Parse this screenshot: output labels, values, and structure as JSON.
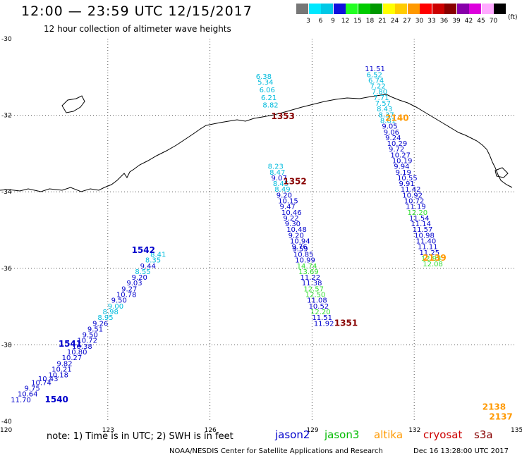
{
  "title": "12:00 — 23:59 UTC 12/15/2017",
  "subtitle": "12 hour collection of altimeter wave heights",
  "legend": {
    "unit": "(ft)",
    "bins": [
      {
        "label": "3",
        "color": "#777777"
      },
      {
        "label": "6",
        "color": "#00e8ff"
      },
      {
        "label": "9",
        "color": "#00c8e6"
      },
      {
        "label": "12",
        "color": "#1010dd"
      },
      {
        "label": "15",
        "color": "#22ff22"
      },
      {
        "label": "18",
        "color": "#00cc00"
      },
      {
        "label": "21",
        "color": "#009900"
      },
      {
        "label": "24",
        "color": "#ffff00"
      },
      {
        "label": "27",
        "color": "#ffcc00"
      },
      {
        "label": "30",
        "color": "#ff9900"
      },
      {
        "label": "33",
        "color": "#ff0000"
      },
      {
        "label": "36",
        "color": "#cc0000"
      },
      {
        "label": "39",
        "color": "#880000"
      },
      {
        "label": "42",
        "color": "#8800aa"
      },
      {
        "label": "45",
        "color": "#dd00dd"
      },
      {
        "label": "70",
        "color": "#ffaaff"
      },
      {
        "label": "",
        "color": "#000000"
      }
    ]
  },
  "axes": {
    "lon_ticks": [
      {
        "v": 120,
        "label": "120"
      },
      {
        "v": 123,
        "label": "123"
      },
      {
        "v": 126,
        "label": "126"
      },
      {
        "v": 129,
        "label": "129"
      },
      {
        "v": 132,
        "label": "132"
      },
      {
        "v": 135,
        "label": "135"
      }
    ],
    "lat_ticks": [
      {
        "v": -30,
        "label": "-30"
      },
      {
        "v": -32,
        "label": "-32"
      },
      {
        "v": -34,
        "label": "-34"
      },
      {
        "v": -36,
        "label": "-36"
      },
      {
        "v": -38,
        "label": "-38"
      },
      {
        "v": -40,
        "label": "-40"
      }
    ]
  },
  "colors": {
    "jason2": "#0000cc",
    "jason3": "#00bb00",
    "altika": "#ff9900",
    "cryosat": "#cc0000",
    "s3a": "#880000",
    "cyan": "#00bbdd",
    "green": "#33dd33"
  },
  "passes": [
    {
      "id": "1540",
      "label": "1540",
      "color": "#0000cc",
      "label_lon": 121.15,
      "label_lat": -39.5
    },
    {
      "id": "1541",
      "label": "1541",
      "color": "#0000cc",
      "label_lon": 121.55,
      "label_lat": -38.05
    },
    {
      "id": "1542",
      "label": "1542",
      "color": "#0000cc",
      "label_lon": 123.7,
      "label_lat": -35.6
    },
    {
      "id": "1351",
      "label": "1351",
      "color": "#880000",
      "label_lon": 129.65,
      "label_lat": -37.5
    },
    {
      "id": "1352",
      "label": "1352",
      "color": "#880000",
      "label_lon": 128.15,
      "label_lat": -33.8
    },
    {
      "id": "1353",
      "label": "1353",
      "color": "#880000",
      "label_lon": 127.8,
      "label_lat": -32.1
    },
    {
      "id": "2137",
      "label": "2137",
      "color": "#ff9900",
      "label_lon": 134.2,
      "label_lat": -39.95
    },
    {
      "id": "2138",
      "label": "2138",
      "color": "#ff9900",
      "label_lon": 134.0,
      "label_lat": -39.7
    },
    {
      "id": "2139",
      "label": "2139",
      "color": "#ff9900",
      "label_lon": 132.25,
      "label_lat": -35.8
    },
    {
      "id": "2140",
      "label": "2140",
      "color": "#ff9900",
      "label_lon": 131.15,
      "label_lat": -32.15
    }
  ],
  "wave_heights": [
    {
      "v": "11.70",
      "lon": 120.15,
      "lat": -39.5,
      "c": "#0000cc"
    },
    {
      "v": "10.64",
      "lon": 120.35,
      "lat": -39.35,
      "c": "#0000cc"
    },
    {
      "v": "9.75",
      "lon": 120.55,
      "lat": -39.2,
      "c": "#0000cc"
    },
    {
      "v": "10.74",
      "lon": 120.75,
      "lat": -39.05,
      "c": "#0000cc"
    },
    {
      "v": "10.43",
      "lon": 120.95,
      "lat": -38.95,
      "c": "#0000cc"
    },
    {
      "v": "10.18",
      "lon": 121.25,
      "lat": -38.85,
      "c": "#0000cc"
    },
    {
      "v": "10.21",
      "lon": 121.35,
      "lat": -38.7,
      "c": "#0000cc"
    },
    {
      "v": "9.82",
      "lon": 121.5,
      "lat": -38.55,
      "c": "#0000cc"
    },
    {
      "v": "10.27",
      "lon": 121.65,
      "lat": -38.4,
      "c": "#0000cc"
    },
    {
      "v": "10.80",
      "lon": 121.8,
      "lat": -38.25,
      "c": "#0000cc"
    },
    {
      "v": "10.38",
      "lon": 121.95,
      "lat": -38.1,
      "c": "#0000cc"
    },
    {
      "v": "10.72",
      "lon": 122.1,
      "lat": -37.95,
      "c": "#0000cc"
    },
    {
      "v": "9.50",
      "lon": 122.25,
      "lat": -37.8,
      "c": "#0000cc"
    },
    {
      "v": "9.51",
      "lon": 122.4,
      "lat": -37.65,
      "c": "#0000cc"
    },
    {
      "v": "9.26",
      "lon": 122.55,
      "lat": -37.5,
      "c": "#0000cc"
    },
    {
      "v": "8.95",
      "lon": 122.7,
      "lat": -37.35,
      "c": "#00bbdd"
    },
    {
      "v": "8.98",
      "lon": 122.85,
      "lat": -37.2,
      "c": "#00bbdd"
    },
    {
      "v": "9.00",
      "lon": 123.0,
      "lat": -37.05,
      "c": "#00bbdd"
    },
    {
      "v": "9.50",
      "lon": 123.1,
      "lat": -36.9,
      "c": "#0000cc"
    },
    {
      "v": "10.78",
      "lon": 123.25,
      "lat": -36.75,
      "c": "#0000cc"
    },
    {
      "v": "9.27",
      "lon": 123.4,
      "lat": -36.6,
      "c": "#0000cc"
    },
    {
      "v": "9.03",
      "lon": 123.55,
      "lat": -36.45,
      "c": "#0000cc"
    },
    {
      "v": "9.20",
      "lon": 123.7,
      "lat": -36.3,
      "c": "#0000cc"
    },
    {
      "v": "8.55",
      "lon": 123.8,
      "lat": -36.15,
      "c": "#00bbdd"
    },
    {
      "v": "9.44",
      "lon": 123.95,
      "lat": -36.0,
      "c": "#0000cc"
    },
    {
      "v": "8.35",
      "lon": 124.1,
      "lat": -35.85,
      "c": "#00bbdd"
    },
    {
      "v": "8.41",
      "lon": 124.25,
      "lat": -35.7,
      "c": "#00bbdd"
    },
    {
      "v": "6.38",
      "lon": 127.35,
      "lat": -31.05,
      "c": "#00bbdd"
    },
    {
      "v": "5.34",
      "lon": 127.4,
      "lat": -31.2,
      "c": "#00bbdd"
    },
    {
      "v": "6.06",
      "lon": 127.45,
      "lat": -31.4,
      "c": "#00bbdd"
    },
    {
      "v": "6.21",
      "lon": 127.5,
      "lat": -31.6,
      "c": "#00bbdd"
    },
    {
      "v": "8.82",
      "lon": 127.55,
      "lat": -31.8,
      "c": "#00bbdd"
    },
    {
      "v": "8.23",
      "lon": 127.7,
      "lat": -33.4,
      "c": "#00bbdd"
    },
    {
      "v": "8.47",
      "lon": 127.75,
      "lat": -33.55,
      "c": "#00bbdd"
    },
    {
      "v": "9.07",
      "lon": 127.8,
      "lat": -33.7,
      "c": "#0000cc"
    },
    {
      "v": "8.45",
      "lon": 127.85,
      "lat": -33.85,
      "c": "#00bbdd"
    },
    {
      "v": "8.49",
      "lon": 127.9,
      "lat": -34.0,
      "c": "#00bbdd"
    },
    {
      "v": "9.20",
      "lon": 127.95,
      "lat": -34.15,
      "c": "#0000cc"
    },
    {
      "v": "10.15",
      "lon": 128.0,
      "lat": -34.3,
      "c": "#0000cc"
    },
    {
      "v": "9.47",
      "lon": 128.05,
      "lat": -34.45,
      "c": "#0000cc"
    },
    {
      "v": "10.46",
      "lon": 128.1,
      "lat": -34.6,
      "c": "#0000cc"
    },
    {
      "v": "9.22",
      "lon": 128.15,
      "lat": -34.75,
      "c": "#0000cc"
    },
    {
      "v": "9.30",
      "lon": 128.2,
      "lat": -34.9,
      "c": "#0000cc"
    },
    {
      "v": "10.48",
      "lon": 128.25,
      "lat": -35.05,
      "c": "#0000cc"
    },
    {
      "v": "9.20",
      "lon": 128.3,
      "lat": -35.2,
      "c": "#0000cc"
    },
    {
      "v": "10.94",
      "lon": 128.35,
      "lat": -35.35,
      "c": "#0000cc"
    },
    {
      "v": "9.76",
      "lon": 128.4,
      "lat": -35.5,
      "c": "#0000cc"
    },
    {
      "v": "9.59",
      "lon": 128.42,
      "lat": -35.55,
      "c": "#0000cc"
    },
    {
      "v": "10.85",
      "lon": 128.45,
      "lat": -35.7,
      "c": "#0000cc"
    },
    {
      "v": "10.99",
      "lon": 128.5,
      "lat": -35.85,
      "c": "#0000cc"
    },
    {
      "v": "14.74",
      "lon": 128.55,
      "lat": -36.0,
      "c": "#33dd33"
    },
    {
      "v": "13.69",
      "lon": 128.6,
      "lat": -36.15,
      "c": "#33dd33"
    },
    {
      "v": "11.22",
      "lon": 128.65,
      "lat": -36.3,
      "c": "#0000cc"
    },
    {
      "v": "11.38",
      "lon": 128.7,
      "lat": -36.45,
      "c": "#0000cc"
    },
    {
      "v": "12.57",
      "lon": 128.75,
      "lat": -36.6,
      "c": "#33dd33"
    },
    {
      "v": "12.50",
      "lon": 128.8,
      "lat": -36.75,
      "c": "#33dd33"
    },
    {
      "v": "11.08",
      "lon": 128.85,
      "lat": -36.9,
      "c": "#0000cc"
    },
    {
      "v": "10.52",
      "lon": 128.9,
      "lat": -37.05,
      "c": "#0000cc"
    },
    {
      "v": "12.20",
      "lon": 128.95,
      "lat": -37.2,
      "c": "#33dd33"
    },
    {
      "v": "11.51",
      "lon": 129.0,
      "lat": -37.35,
      "c": "#0000cc"
    },
    {
      "v": "11.92",
      "lon": 129.05,
      "lat": -37.5,
      "c": "#0000cc"
    },
    {
      "v": "11.51",
      "lon": 130.55,
      "lat": -30.85,
      "c": "#0000cc"
    },
    {
      "v": "6.52",
      "lon": 130.6,
      "lat": -31.0,
      "c": "#00bbdd"
    },
    {
      "v": "6.74",
      "lon": 130.65,
      "lat": -31.15,
      "c": "#00bbdd"
    },
    {
      "v": "7.22",
      "lon": 130.7,
      "lat": -31.3,
      "c": "#00bbdd"
    },
    {
      "v": "7.80",
      "lon": 130.75,
      "lat": -31.45,
      "c": "#00bbdd"
    },
    {
      "v": "7.71",
      "lon": 130.8,
      "lat": -31.6,
      "c": "#00bbdd"
    },
    {
      "v": "7.57",
      "lon": 130.85,
      "lat": -31.75,
      "c": "#00bbdd"
    },
    {
      "v": "8.43",
      "lon": 130.9,
      "lat": -31.9,
      "c": "#00bbdd"
    },
    {
      "v": "8.37",
      "lon": 130.95,
      "lat": -32.05,
      "c": "#00bbdd"
    },
    {
      "v": "8.81",
      "lon": 131.0,
      "lat": -32.2,
      "c": "#00bbdd"
    },
    {
      "v": "9.05",
      "lon": 131.05,
      "lat": -32.35,
      "c": "#0000cc"
    },
    {
      "v": "9.06",
      "lon": 131.1,
      "lat": -32.5,
      "c": "#0000cc"
    },
    {
      "v": "9.24",
      "lon": 131.15,
      "lat": -32.65,
      "c": "#0000cc"
    },
    {
      "v": "10.29",
      "lon": 131.2,
      "lat": -32.8,
      "c": "#0000cc"
    },
    {
      "v": "9.72",
      "lon": 131.25,
      "lat": -32.95,
      "c": "#0000cc"
    },
    {
      "v": "10.27",
      "lon": 131.3,
      "lat": -33.1,
      "c": "#0000cc"
    },
    {
      "v": "10.19",
      "lon": 131.35,
      "lat": -33.25,
      "c": "#0000cc"
    },
    {
      "v": "9.94",
      "lon": 131.4,
      "lat": -33.4,
      "c": "#0000cc"
    },
    {
      "v": "9.19",
      "lon": 131.45,
      "lat": -33.55,
      "c": "#0000cc"
    },
    {
      "v": "10.55",
      "lon": 131.5,
      "lat": -33.7,
      "c": "#0000cc"
    },
    {
      "v": "9.91",
      "lon": 131.55,
      "lat": -33.85,
      "c": "#0000cc"
    },
    {
      "v": "11.42",
      "lon": 131.6,
      "lat": -34.0,
      "c": "#0000cc"
    },
    {
      "v": "10.92",
      "lon": 131.65,
      "lat": -34.15,
      "c": "#0000cc"
    },
    {
      "v": "10.72",
      "lon": 131.7,
      "lat": -34.3,
      "c": "#0000cc"
    },
    {
      "v": "11.19",
      "lon": 131.75,
      "lat": -34.45,
      "c": "#0000cc"
    },
    {
      "v": "12.20",
      "lon": 131.8,
      "lat": -34.6,
      "c": "#33dd33"
    },
    {
      "v": "11.54",
      "lon": 131.85,
      "lat": -34.75,
      "c": "#0000cc"
    },
    {
      "v": "11.14",
      "lon": 131.9,
      "lat": -34.9,
      "c": "#0000cc"
    },
    {
      "v": "11.57",
      "lon": 131.95,
      "lat": -35.05,
      "c": "#0000cc"
    },
    {
      "v": "10.98",
      "lon": 132.0,
      "lat": -35.2,
      "c": "#0000cc"
    },
    {
      "v": "11.40",
      "lon": 132.05,
      "lat": -35.35,
      "c": "#0000cc"
    },
    {
      "v": "11.11",
      "lon": 132.1,
      "lat": -35.5,
      "c": "#0000cc"
    },
    {
      "v": "11.25",
      "lon": 132.15,
      "lat": -35.65,
      "c": "#0000cc"
    },
    {
      "v": "12.93",
      "lon": 132.2,
      "lat": -35.8,
      "c": "#33dd33"
    },
    {
      "v": "12.08",
      "lon": 132.25,
      "lat": -35.95,
      "c": "#33dd33"
    }
  ],
  "note": "note: 1) Time is in UTC; 2) SWH is in feet",
  "satellites": [
    {
      "name": "jason2",
      "color": "#0000cc"
    },
    {
      "name": "jason3",
      "color": "#00bb00"
    },
    {
      "name": "altika",
      "color": "#ff9900"
    },
    {
      "name": "cryosat",
      "color": "#cc0000"
    },
    {
      "name": "s3a",
      "color": "#880000"
    }
  ],
  "footer": {
    "credit": "NOAA/NESDIS Center for Satellite Applications and Research",
    "timestamp": "Dec 16 13:28:00 UTC 2017"
  }
}
